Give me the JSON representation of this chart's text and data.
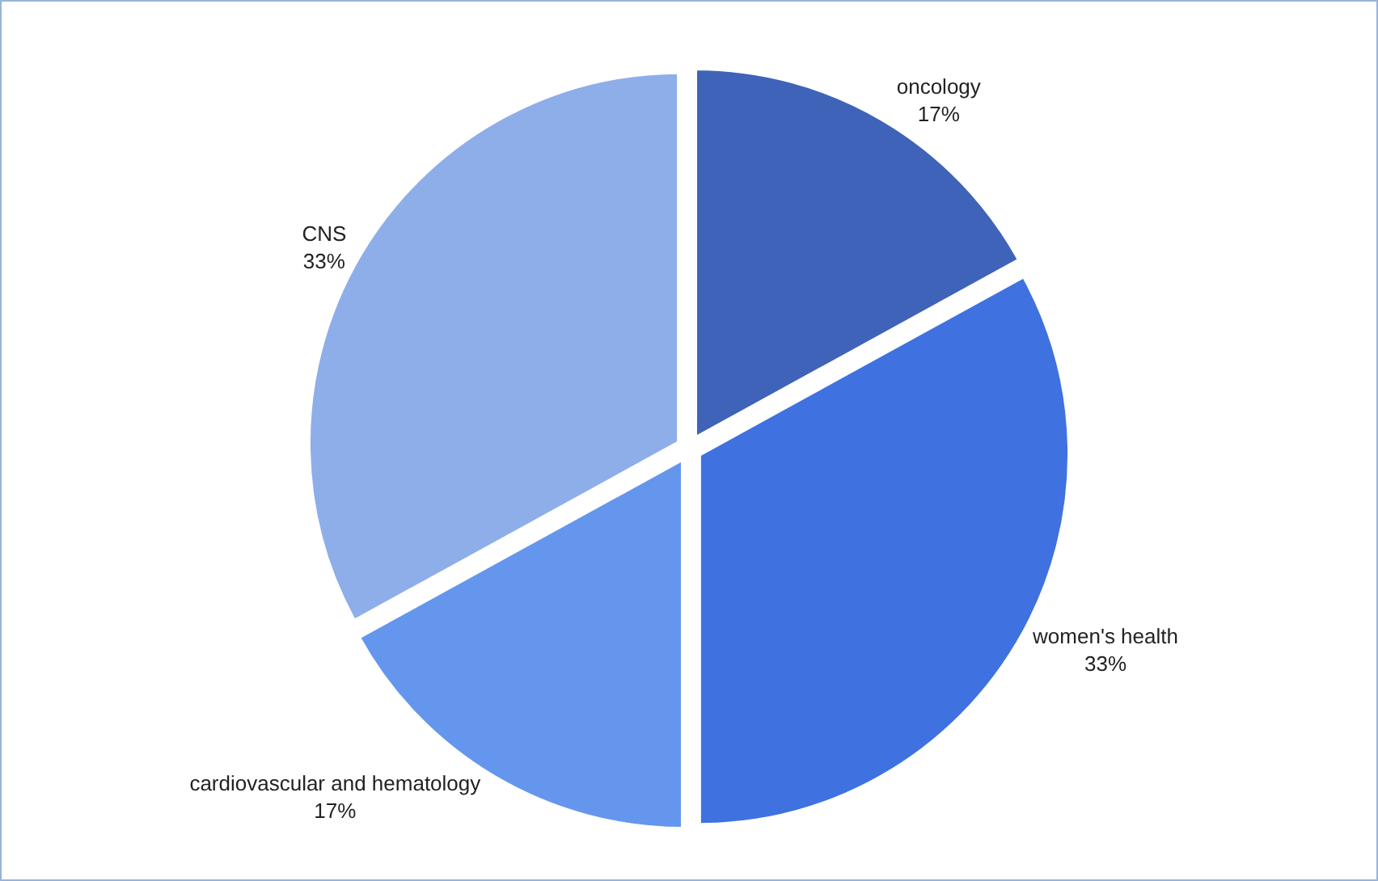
{
  "chart_data": {
    "type": "pie",
    "categories": [
      "oncology",
      "women's health",
      "cardiovascular and hematology",
      "CNS"
    ],
    "values": [
      17,
      33,
      17,
      33
    ],
    "value_labels": [
      "17%",
      "33%",
      "17%",
      "33%"
    ],
    "colors": [
      "#3f63b8",
      "#3f72e0",
      "#6596ee",
      "#8eaeea"
    ],
    "legend": false
  }
}
